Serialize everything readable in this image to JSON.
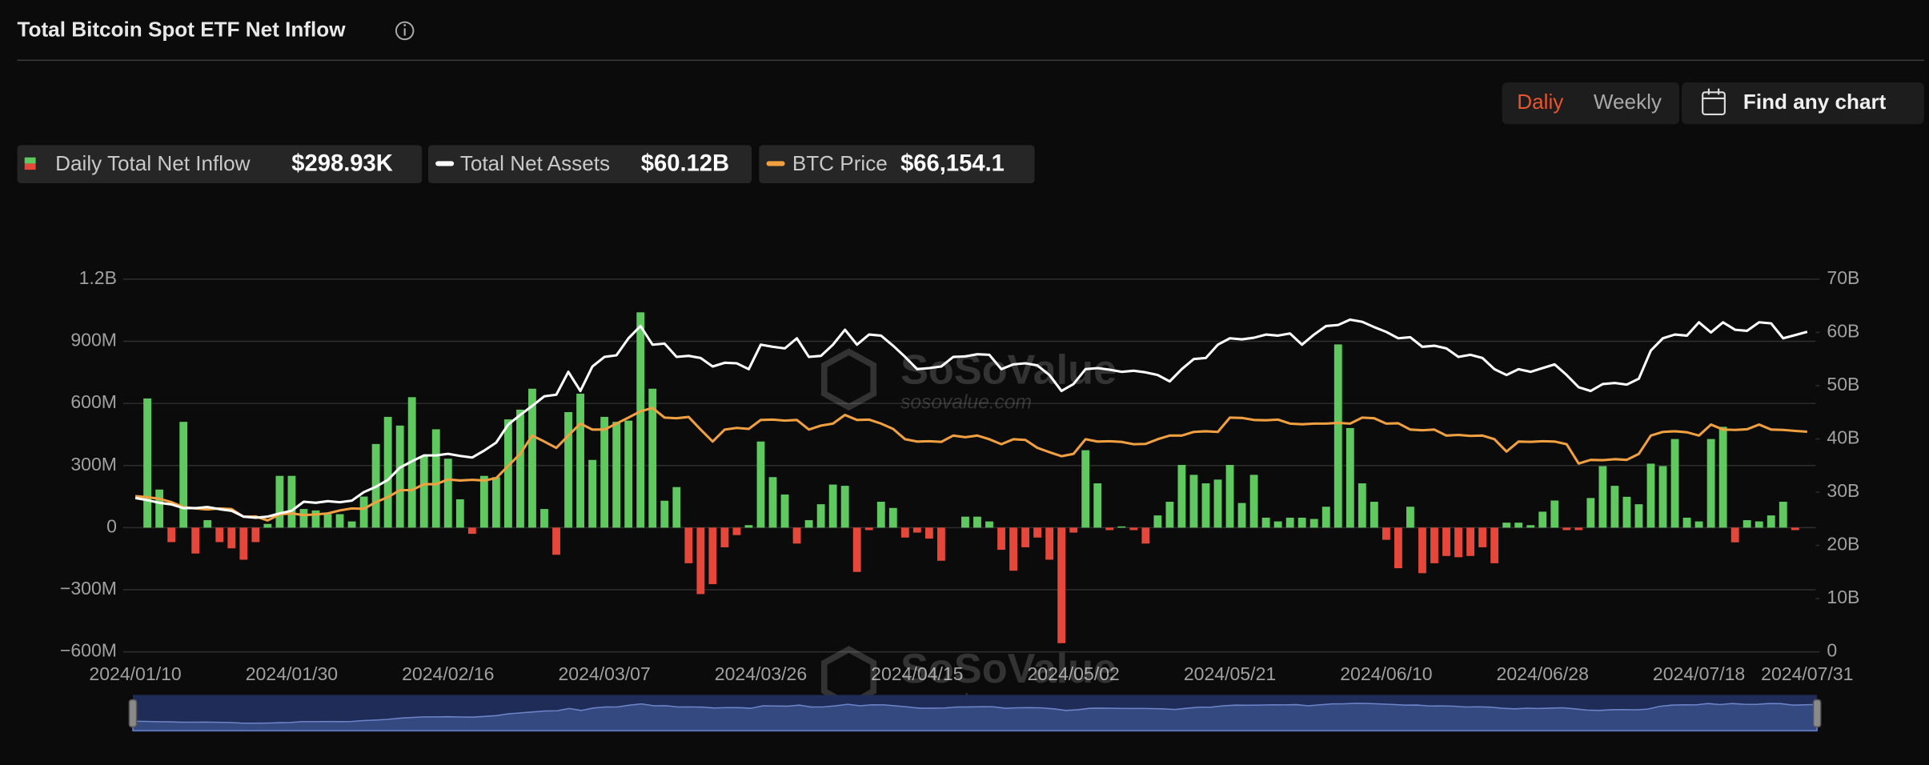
{
  "chart_data": {
    "type": "bar",
    "title": "Total Bitcoin Spot ETF Net Inflow",
    "controls": {
      "daily": "Daliy",
      "weekly": "Weekly",
      "search": "Find any chart"
    },
    "watermark": {
      "brand": "SoSoValue",
      "url": "sosovalue.com"
    },
    "categories": [
      "2024/01/10",
      null,
      null,
      null,
      null,
      null,
      null,
      null,
      null,
      null,
      null,
      null,
      null,
      "2024/01/30",
      null,
      null,
      null,
      null,
      null,
      null,
      null,
      null,
      null,
      null,
      null,
      null,
      "2024/02/16",
      null,
      null,
      null,
      null,
      null,
      null,
      null,
      null,
      null,
      null,
      null,
      null,
      "2024/03/07",
      null,
      null,
      null,
      null,
      null,
      null,
      null,
      null,
      null,
      null,
      null,
      null,
      "2024/03/26",
      null,
      null,
      null,
      null,
      null,
      null,
      null,
      null,
      null,
      null,
      null,
      null,
      "2024/04/15",
      null,
      null,
      null,
      null,
      null,
      null,
      null,
      null,
      null,
      null,
      null,
      null,
      "2024/05/02",
      null,
      null,
      null,
      null,
      null,
      null,
      null,
      null,
      null,
      null,
      null,
      null,
      "2024/05/21",
      null,
      null,
      null,
      null,
      null,
      null,
      null,
      null,
      null,
      null,
      null,
      null,
      "2024/06/10",
      null,
      null,
      null,
      null,
      null,
      null,
      null,
      null,
      null,
      null,
      null,
      null,
      "2024/06/28",
      null,
      null,
      null,
      null,
      null,
      null,
      null,
      null,
      null,
      null,
      null,
      null,
      "2024/07/18",
      null,
      null,
      null,
      null,
      null,
      null,
      null,
      null,
      "2024/07/31"
    ],
    "ylim": [
      -600,
      1200
    ],
    "yticks": [
      {
        "value": -600,
        "label": "−600M"
      },
      {
        "value": -300,
        "label": "−300M"
      },
      0,
      {
        "value": 300,
        "label": "300M"
      },
      {
        "value": 600,
        "label": "600M"
      },
      {
        "value": 900,
        "label": "900M"
      },
      {
        "value": 1200,
        "label": "1.2B"
      }
    ],
    "y2lim": [
      0,
      70
    ],
    "y2ticks": [
      0,
      {
        "value": 10,
        "label": "10B"
      },
      {
        "value": 20,
        "label": "20B"
      },
      {
        "value": 30,
        "label": "30B"
      },
      {
        "value": 40,
        "label": "40B"
      },
      {
        "value": 50,
        "label": "50B"
      },
      {
        "value": 60,
        "label": "60B"
      },
      {
        "value": 70,
        "label": "70B"
      }
    ],
    "y3lim": [
      0,
      112000
    ],
    "grid": true,
    "series": [
      {
        "name": "Daily Total Net Inflow",
        "type": "bar",
        "color": "#5fc95f",
        "negative_color": "#e5483b",
        "legend_value": "$298.93K",
        "values": [
          0,
          624,
          184,
          -70,
          511,
          -125,
          36,
          -70,
          -100,
          -155,
          -70,
          18,
          250,
          250,
          90,
          83,
          65,
          65,
          30,
          150,
          404,
          535,
          493,
          630,
          345,
          475,
          333,
          137,
          -30,
          250,
          244,
          523,
          570,
          671,
          90,
          -131,
          558,
          647,
          327,
          535,
          511,
          517,
          1040,
          671,
          130,
          196,
          -172,
          -321,
          -273,
          -95,
          -36,
          12,
          416,
          244,
          160,
          -77,
          36,
          113,
          208,
          202,
          -214,
          -12,
          125,
          95,
          -48,
          -24,
          -53,
          -160,
          0,
          53,
          53,
          30,
          -107,
          -208,
          -95,
          -48,
          -155,
          -558,
          -24,
          374,
          214,
          -12,
          6,
          -12,
          -77,
          59,
          125,
          303,
          255,
          214,
          232,
          303,
          119,
          255,
          48,
          30,
          48,
          48,
          42,
          101,
          885,
          481,
          214,
          125,
          -59,
          -196,
          101,
          -220,
          -172,
          -137,
          -143,
          -137,
          -95,
          -172,
          24,
          24,
          12,
          77,
          131,
          -12,
          -12,
          143,
          297,
          202,
          149,
          113,
          309,
          297,
          428,
          48,
          30,
          428,
          487,
          -71,
          36,
          30,
          59,
          125,
          -12,
          0.29893
        ]
      },
      {
        "name": "Total Net Assets",
        "type": "line",
        "axis": "y2",
        "color": "#ffffff",
        "legend_value": "$60.12B",
        "values": [
          28.9,
          28.5,
          28.0,
          27.7,
          27.0,
          27.0,
          27.2,
          26.8,
          26.5,
          25.4,
          25.2,
          25.4,
          26.0,
          26.5,
          28.2,
          28.0,
          28.3,
          28.1,
          28.4,
          30.0,
          31.0,
          32.3,
          34.6,
          35.8,
          36.9,
          36.9,
          37.2,
          36.8,
          36.5,
          37.8,
          39.3,
          42.7,
          44.5,
          46.2,
          48.0,
          48.3,
          52.6,
          49.0,
          53.6,
          55.4,
          55.7,
          58.9,
          61.2,
          57.7,
          57.9,
          55.4,
          55.6,
          55.2,
          53.6,
          54.3,
          54.2,
          53.1,
          57.7,
          57.3,
          57.0,
          58.9,
          55.4,
          55.6,
          57.7,
          60.5,
          57.7,
          59.6,
          59.4,
          57.5,
          55.4,
          53.1,
          53.3,
          53.6,
          55.4,
          55.5,
          55.9,
          55.8,
          53.1,
          54.0,
          54.2,
          53.8,
          52.0,
          49.0,
          50.3,
          53.1,
          53.3,
          53.0,
          52.6,
          52.8,
          52.5,
          52.0,
          50.8,
          53.1,
          55.0,
          55.2,
          57.7,
          58.9,
          58.7,
          59.0,
          59.6,
          59.4,
          59.8,
          57.7,
          59.6,
          61.2,
          61.4,
          62.4,
          62.0,
          61.0,
          60.1,
          58.9,
          59.1,
          57.3,
          57.5,
          57.0,
          55.4,
          55.8,
          55.2,
          53.1,
          52.0,
          53.1,
          52.6,
          53.3,
          54.0,
          52.0,
          49.7,
          49.0,
          50.3,
          50.5,
          50.2,
          51.3,
          56.6,
          58.9,
          59.6,
          59.4,
          61.9,
          60.0,
          61.9,
          60.5,
          60.3,
          61.9,
          61.7,
          58.9,
          59.5,
          60.12
        ]
      },
      {
        "name": "BTC Price",
        "type": "line",
        "axis": "y3",
        "color": "#f0a040",
        "legend_value": "$66,154.1",
        "values": [
          46780,
          46500,
          46000,
          45000,
          43500,
          43100,
          42800,
          43100,
          42900,
          40600,
          40700,
          39500,
          41300,
          41600,
          41100,
          41300,
          41600,
          42500,
          43100,
          43000,
          45000,
          46500,
          48600,
          48600,
          50400,
          50400,
          51800,
          51500,
          51700,
          51500,
          52200,
          55900,
          59500,
          65000,
          63200,
          61300,
          65000,
          68600,
          66800,
          66800,
          68600,
          70400,
          72300,
          73300,
          70400,
          70200,
          70600,
          66800,
          63200,
          66800,
          67300,
          67000,
          69700,
          69800,
          69500,
          69700,
          66800,
          68000,
          68600,
          71200,
          69700,
          69800,
          68600,
          67000,
          63900,
          63200,
          63300,
          63100,
          65000,
          64500,
          65000,
          63900,
          62400,
          63900,
          63700,
          61300,
          60000,
          58800,
          59500,
          63900,
          63200,
          63300,
          63100,
          62400,
          62500,
          63900,
          65000,
          65000,
          66100,
          66300,
          66100,
          70400,
          70300,
          69700,
          69600,
          69800,
          68600,
          68400,
          68600,
          68600,
          68800,
          68600,
          70400,
          70200,
          68600,
          68700,
          66800,
          66600,
          66800,
          65000,
          65200,
          64900,
          65000,
          63900,
          60200,
          63200,
          63100,
          63300,
          63200,
          62400,
          56600,
          57700,
          57600,
          57900,
          57700,
          59500,
          65000,
          66100,
          66300,
          66000,
          65000,
          68300,
          66800,
          66700,
          66900,
          68300,
          66800,
          66700,
          66400,
          66154.1
        ]
      }
    ]
  }
}
